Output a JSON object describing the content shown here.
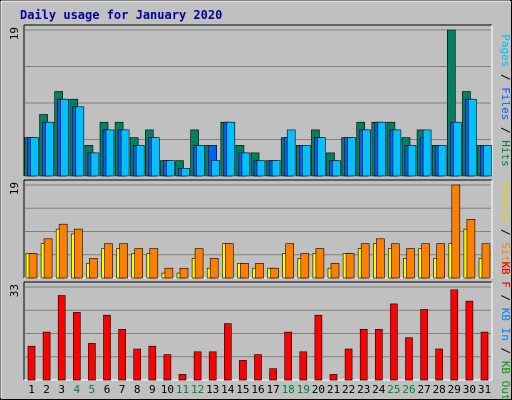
{
  "chart_data": {
    "type": "bar",
    "title": "Daily usage for January 2020",
    "categories": [
      "1",
      "2",
      "3",
      "4",
      "5",
      "6",
      "7",
      "8",
      "9",
      "10",
      "11",
      "12",
      "13",
      "14",
      "15",
      "16",
      "17",
      "18",
      "19",
      "20",
      "21",
      "22",
      "23",
      "24",
      "25",
      "26",
      "27",
      "28",
      "29",
      "30",
      "31"
    ],
    "weekend_days": [
      "4",
      "5",
      "11",
      "12",
      "18",
      "19",
      "25",
      "26"
    ],
    "panels": [
      {
        "id": "hits",
        "ymax": 19,
        "ymax_label": "19",
        "side_label": [
          {
            "text": "Pages",
            "color": "#00c0ff"
          },
          {
            "text": " / ",
            "color": "#000000"
          },
          {
            "text": "Files",
            "color": "#0060ff"
          },
          {
            "text": " / ",
            "color": "#000000"
          },
          {
            "text": "Hits",
            "color": "#008040"
          }
        ],
        "series": [
          {
            "name": "Hits",
            "color": "#008060",
            "values": [
              5,
              8,
              11,
              10,
              4,
              7,
              7,
              5,
              6,
              2,
              2,
              6,
              4,
              7,
              4,
              3,
              2,
              5,
              4,
              6,
              3,
              5,
              7,
              7,
              7,
              5,
              6,
              4,
              19,
              11,
              4
            ]
          },
          {
            "name": "Files",
            "color": "#0060ff",
            "values": [
              5,
              7,
              10,
              9,
              3,
              6,
              6,
              4,
              5,
              2,
              1,
              4,
              4,
              7,
              3,
              2,
              2,
              5,
              4,
              5,
              2,
              5,
              6,
              7,
              6,
              4,
              5,
              4,
              7,
              10,
              4
            ]
          },
          {
            "name": "Pages",
            "color": "#00c0ff",
            "values": [
              5,
              7,
              10,
              9,
              3,
              6,
              6,
              4,
              5,
              2,
              1,
              4,
              2,
              7,
              3,
              2,
              2,
              6,
              4,
              5,
              2,
              5,
              6,
              7,
              6,
              4,
              6,
              4,
              7,
              10,
              4
            ]
          }
        ]
      },
      {
        "id": "visits",
        "ymax": 19,
        "ymax_label": "19",
        "side_label": [
          {
            "text": "Visits",
            "color": "#e0d000"
          },
          {
            "text": " / ",
            "color": "#000000"
          },
          {
            "text": "Sites",
            "color": "#ff8000"
          }
        ],
        "series": [
          {
            "name": "Visits",
            "color": "#ffff00",
            "values": [
              5,
              7,
              10,
              9,
              3,
              6,
              6,
              5,
              5,
              1,
              1,
              4,
              2,
              7,
              3,
              2,
              2,
              5,
              4,
              5,
              2,
              5,
              6,
              7,
              6,
              4,
              6,
              4,
              7,
              10,
              4
            ]
          },
          {
            "name": "Sites",
            "color": "#ff8000",
            "values": [
              5,
              8,
              11,
              10,
              4,
              7,
              7,
              6,
              6,
              2,
              2,
              6,
              4,
              7,
              3,
              3,
              2,
              7,
              5,
              6,
              3,
              5,
              7,
              8,
              7,
              6,
              7,
              7,
              19,
              12,
              7
            ]
          }
        ]
      },
      {
        "id": "kbytes",
        "ymax": 33,
        "ymax_label": "33",
        "side_label": [
          {
            "text": "KB F",
            "color": "#e00000"
          },
          {
            "text": " / ",
            "color": "#000000"
          },
          {
            "text": "KB In",
            "color": "#0080ff"
          },
          {
            "text": " / ",
            "color": "#000000"
          },
          {
            "text": "KB Out",
            "color": "#00a000"
          }
        ],
        "series": [
          {
            "name": "KB F",
            "color": "#ff0000",
            "values": [
              12,
              17,
              30,
              24,
              13,
              23,
              18,
              11,
              12,
              9,
              2,
              10,
              10,
              20,
              7,
              9,
              4,
              17,
              10,
              23,
              2,
              11,
              18,
              18,
              27,
              15,
              25,
              11,
              32,
              28,
              17
            ]
          }
        ]
      }
    ]
  }
}
